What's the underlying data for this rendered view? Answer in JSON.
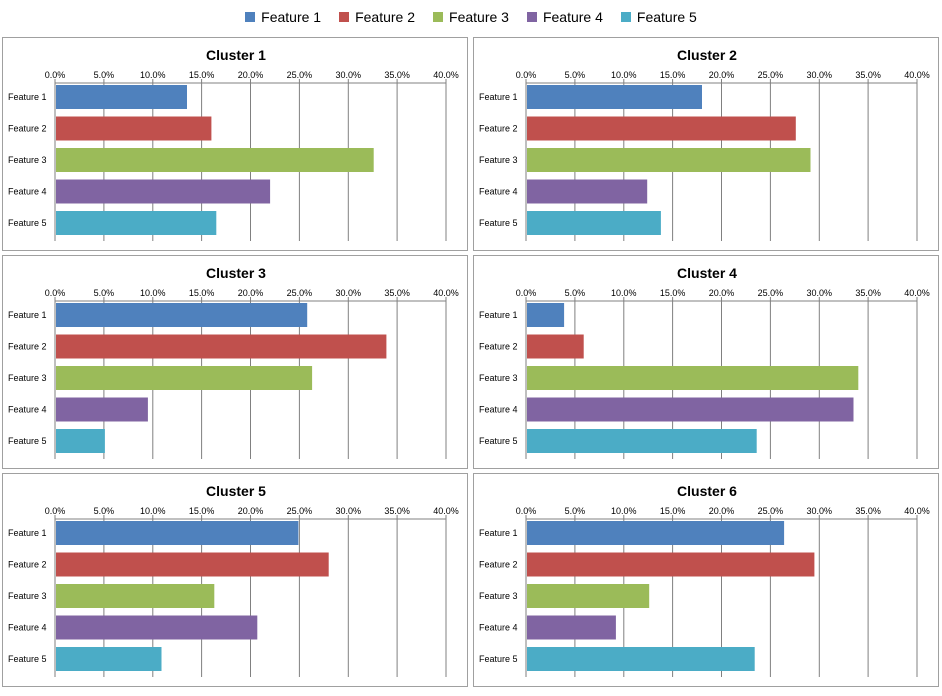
{
  "legend": {
    "items": [
      {
        "label": "Feature 1",
        "color": "#4F81BD"
      },
      {
        "label": "Feature 2",
        "color": "#C0504D"
      },
      {
        "label": "Feature 3",
        "color": "#9BBB59"
      },
      {
        "label": "Feature 4",
        "color": "#8064A2"
      },
      {
        "label": "Feature 5",
        "color": "#4BACC6"
      }
    ]
  },
  "chart_data": [
    {
      "type": "bar",
      "orientation": "horizontal",
      "title": "Cluster 1",
      "categories": [
        "Feature 1",
        "Feature 2",
        "Feature 3",
        "Feature 4",
        "Feature 5"
      ],
      "values": [
        13.5,
        16.0,
        32.6,
        22.0,
        16.5
      ],
      "xlim": [
        0,
        40
      ],
      "xticks": [
        "0.0%",
        "5.0%",
        "10.0%",
        "15.0%",
        "20.0%",
        "25.0%",
        "30.0%",
        "35.0%",
        "40.0%"
      ],
      "xlabel": "",
      "ylabel": ""
    },
    {
      "type": "bar",
      "orientation": "horizontal",
      "title": "Cluster 2",
      "categories": [
        "Feature 1",
        "Feature 2",
        "Feature 3",
        "Feature 4",
        "Feature 5"
      ],
      "values": [
        18.0,
        27.6,
        29.1,
        12.4,
        13.8
      ],
      "xlim": [
        0,
        40
      ],
      "xticks": [
        "0.0%",
        "5.0%",
        "10.0%",
        "15.0%",
        "20.0%",
        "25.0%",
        "30.0%",
        "35.0%",
        "40.0%"
      ],
      "xlabel": "",
      "ylabel": ""
    },
    {
      "type": "bar",
      "orientation": "horizontal",
      "title": "Cluster 3",
      "categories": [
        "Feature 1",
        "Feature 2",
        "Feature 3",
        "Feature 4",
        "Feature 5"
      ],
      "values": [
        25.8,
        33.9,
        26.3,
        9.5,
        5.1
      ],
      "xlim": [
        0,
        40
      ],
      "xticks": [
        "0.0%",
        "5.0%",
        "10.0%",
        "15.0%",
        "20.0%",
        "25.0%",
        "30.0%",
        "35.0%",
        "40.0%"
      ],
      "xlabel": "",
      "ylabel": ""
    },
    {
      "type": "bar",
      "orientation": "horizontal",
      "title": "Cluster 4",
      "categories": [
        "Feature 1",
        "Feature 2",
        "Feature 3",
        "Feature 4",
        "Feature 5"
      ],
      "values": [
        3.9,
        5.9,
        34.0,
        33.5,
        23.6
      ],
      "xlim": [
        0,
        40
      ],
      "xticks": [
        "0.0%",
        "5.0%",
        "10.0%",
        "15.0%",
        "20.0%",
        "25.0%",
        "30.0%",
        "35.0%",
        "40.0%"
      ],
      "xlabel": "",
      "ylabel": ""
    },
    {
      "type": "bar",
      "orientation": "horizontal",
      "title": "Cluster 5",
      "categories": [
        "Feature 1",
        "Feature 2",
        "Feature 3",
        "Feature 4",
        "Feature 5"
      ],
      "values": [
        24.9,
        28.0,
        16.3,
        20.7,
        10.9
      ],
      "xlim": [
        0,
        40
      ],
      "xticks": [
        "0.0%",
        "5.0%",
        "10.0%",
        "15.0%",
        "20.0%",
        "25.0%",
        "30.0%",
        "35.0%",
        "40.0%"
      ],
      "xlabel": "",
      "ylabel": ""
    },
    {
      "type": "bar",
      "orientation": "horizontal",
      "title": "Cluster 6",
      "categories": [
        "Feature 1",
        "Feature 2",
        "Feature 3",
        "Feature 4",
        "Feature 5"
      ],
      "values": [
        26.4,
        29.5,
        12.6,
        9.2,
        23.4
      ],
      "xlim": [
        0,
        40
      ],
      "xticks": [
        "0.0%",
        "5.0%",
        "10.0%",
        "15.0%",
        "20.0%",
        "25.0%",
        "30.0%",
        "35.0%",
        "40.0%"
      ],
      "xlabel": "",
      "ylabel": ""
    }
  ]
}
